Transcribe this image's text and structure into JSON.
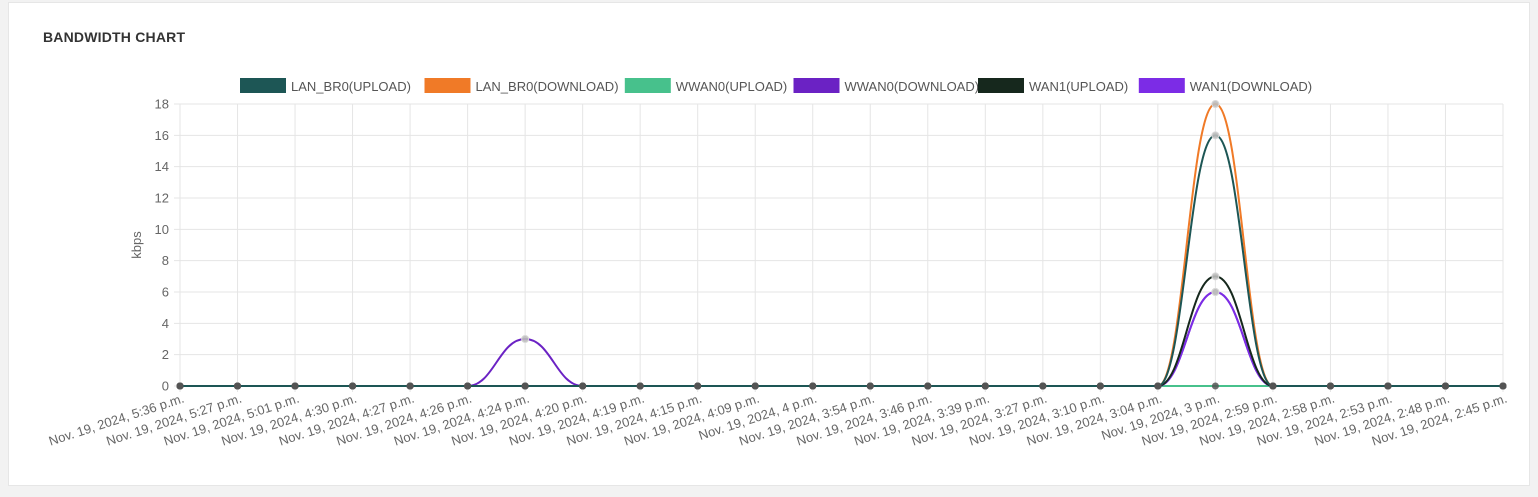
{
  "card": {
    "title": "BANDWIDTH CHART"
  },
  "chart_data": {
    "type": "line",
    "title": "",
    "xlabel": "",
    "ylabel": "kbps",
    "ylim": [
      0,
      18
    ],
    "yticks": [
      0,
      2,
      4,
      6,
      8,
      10,
      12,
      14,
      16,
      18
    ],
    "grid": true,
    "legend_position": "top",
    "categories": [
      "Nov. 19, 2024, 5:36 p.m.",
      "Nov. 19, 2024, 5:27 p.m.",
      "Nov. 19, 2024, 5:01 p.m.",
      "Nov. 19, 2024, 4:30 p.m.",
      "Nov. 19, 2024, 4:27 p.m.",
      "Nov. 19, 2024, 4:26 p.m.",
      "Nov. 19, 2024, 4:24 p.m.",
      "Nov. 19, 2024, 4:20 p.m.",
      "Nov. 19, 2024, 4:19 p.m.",
      "Nov. 19, 2024, 4:15 p.m.",
      "Nov. 19, 2024, 4:09 p.m.",
      "Nov. 19, 2024, 4 p.m.",
      "Nov. 19, 2024, 3:54 p.m.",
      "Nov. 19, 2024, 3:46 p.m.",
      "Nov. 19, 2024, 3:39 p.m.",
      "Nov. 19, 2024, 3:27 p.m.",
      "Nov. 19, 2024, 3:10 p.m.",
      "Nov. 19, 2024, 3:04 p.m.",
      "Nov. 19, 2024, 3 p.m.",
      "Nov. 19, 2024, 2:59 p.m.",
      "Nov. 19, 2024, 2:58 p.m.",
      "Nov. 19, 2024, 2:53 p.m.",
      "Nov. 19, 2024, 2:48 p.m.",
      "Nov. 19, 2024, 2:45 p.m."
    ],
    "series": [
      {
        "name": "LAN_BR0(UPLOAD)",
        "color": "#1d5655",
        "values": [
          0,
          0,
          0,
          0,
          0,
          0,
          0,
          0,
          0,
          0,
          0,
          0,
          0,
          0,
          0,
          0,
          0,
          0,
          16,
          0,
          0,
          0,
          0,
          0
        ]
      },
      {
        "name": "LAN_BR0(DOWNLOAD)",
        "color": "#f07a27",
        "values": [
          0,
          0,
          0,
          0,
          0,
          0,
          0,
          0,
          0,
          0,
          0,
          0,
          0,
          0,
          0,
          0,
          0,
          0,
          18,
          0,
          0,
          0,
          0,
          0
        ]
      },
      {
        "name": "WWAN0(UPLOAD)",
        "color": "#47c18c",
        "values": [
          0,
          0,
          0,
          0,
          0,
          0,
          0,
          0,
          0,
          0,
          0,
          0,
          0,
          0,
          0,
          0,
          0,
          0,
          0,
          0,
          0,
          0,
          0,
          0
        ]
      },
      {
        "name": "WWAN0(DOWNLOAD)",
        "color": "#6b22c4",
        "values": [
          0,
          0,
          0,
          0,
          0,
          0,
          3,
          0,
          0,
          0,
          0,
          0,
          0,
          0,
          0,
          0,
          0,
          0,
          6,
          0,
          0,
          0,
          0,
          0
        ]
      },
      {
        "name": "WAN1(UPLOAD)",
        "color": "#16281d",
        "values": [
          0,
          0,
          0,
          0,
          0,
          0,
          0,
          0,
          0,
          0,
          0,
          0,
          0,
          0,
          0,
          0,
          0,
          0,
          7,
          0,
          0,
          0,
          0,
          0
        ]
      },
      {
        "name": "WAN1(DOWNLOAD)",
        "color": "#7c2ce6",
        "values": [
          0,
          0,
          0,
          0,
          0,
          0,
          0,
          0,
          0,
          0,
          0,
          0,
          0,
          0,
          0,
          0,
          0,
          0,
          6,
          0,
          0,
          0,
          0,
          0
        ]
      }
    ]
  }
}
